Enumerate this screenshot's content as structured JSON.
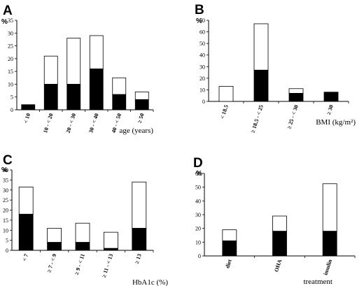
{
  "chart_data": [
    {
      "type": "bar",
      "stacked": true,
      "panel": "A",
      "unit": "%",
      "xlabel": "age (years)",
      "ylim": [
        0,
        35
      ],
      "yticks": [
        0,
        5,
        10,
        15,
        20,
        25,
        30,
        35
      ],
      "categories": [
        "< 10",
        "10 - < 20",
        "20 - < 30",
        "30 - < 40",
        "40 - < 50",
        "≥ 50"
      ],
      "series": [
        {
          "values": [
            2,
            10,
            10,
            16,
            6,
            4
          ],
          "color": "#000000"
        },
        {
          "values": [
            0,
            11,
            18,
            13,
            6.5,
            3
          ],
          "color": "#ffffff"
        }
      ]
    },
    {
      "type": "bar",
      "stacked": true,
      "panel": "B",
      "unit": "%",
      "xlabel": "BMI (kg/m²)",
      "ylim": [
        0,
        70
      ],
      "yticks": [
        0,
        10,
        20,
        30,
        40,
        50,
        60,
        70
      ],
      "categories": [
        "< 18.5",
        "≥ 18.5 - < 25",
        "≥ 25 - < 30",
        "≥ 30"
      ],
      "series": [
        {
          "values": [
            0,
            27,
            7,
            8
          ],
          "color": "#000000"
        },
        {
          "values": [
            13,
            40,
            4,
            0
          ],
          "color": "#ffffff"
        }
      ]
    },
    {
      "type": "bar",
      "stacked": true,
      "panel": "C",
      "unit": "%",
      "xlabel": "HbA1c (%)",
      "ylim": [
        0,
        40
      ],
      "yticks": [
        0,
        5,
        10,
        15,
        20,
        25,
        30,
        35,
        40
      ],
      "categories": [
        "< 7",
        "≥ 7 - < 9",
        "≥ 9 - < 11",
        "≥ 11 - < 13",
        "≥ 13"
      ],
      "series": [
        {
          "values": [
            18,
            4,
            4,
            1,
            11
          ],
          "color": "#000000"
        },
        {
          "values": [
            13.5,
            7,
            9.5,
            8,
            23
          ],
          "color": "#ffffff"
        }
      ]
    },
    {
      "type": "bar",
      "stacked": true,
      "panel": "D",
      "unit": "%",
      "xlabel": "treatment",
      "ylim": [
        0,
        60
      ],
      "yticks": [
        0,
        10,
        20,
        30,
        40,
        50,
        60
      ],
      "categories": [
        "diet",
        "OHA",
        "insulin"
      ],
      "series": [
        {
          "values": [
            11,
            18,
            18
          ],
          "color": "#000000"
        },
        {
          "values": [
            8,
            11,
            34.5
          ],
          "color": "#ffffff"
        }
      ]
    }
  ]
}
